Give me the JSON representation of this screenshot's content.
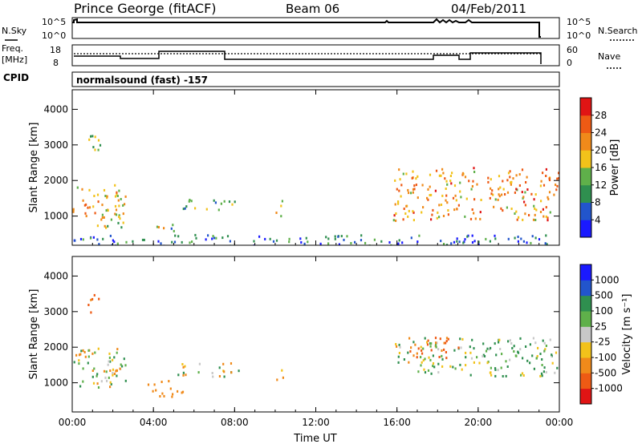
{
  "header": {
    "station": "Prince George (fitACF)",
    "beam": "Beam 06",
    "date": "04/Feb/2011"
  },
  "top_panels": {
    "nsky_label": "N.Sky",
    "nsearch_label": "N.Search",
    "noise_tick_top": "10^5",
    "noise_tick_bottom": "10^0",
    "freq_label_1": "Freq.",
    "freq_label_2": "[MHz]",
    "freq_tick_top": "18",
    "freq_tick_bottom": "8",
    "nave_label": "Nave",
    "nave_tick_top": "60",
    "nave_tick_bottom": "0",
    "cpid_label": "CPID",
    "cpid_text": "normalsound (fast) -157"
  },
  "colors": {
    "power_scale": [
      "#1a1aff",
      "#2255cc",
      "#2f8f4f",
      "#5fb04a",
      "#f2c21a",
      "#f08a1a",
      "#ee5a14",
      "#e01414"
    ],
    "velocity_scale": [
      "#e01414",
      "#ee5a14",
      "#f08a1a",
      "#f2c21a",
      "#c8c8c8",
      "#5fb04a",
      "#2f8f4f",
      "#2255cc",
      "#1a1aff"
    ]
  },
  "chart_data": [
    {
      "type": "heatmap",
      "name": "power",
      "xlabel": "",
      "ylabel": "Slant Range [km]",
      "xlim": [
        0,
        24
      ],
      "ylim": [
        180,
        4550
      ],
      "x_ticks": [
        "00:00",
        "04:00",
        "08:00",
        "12:00",
        "16:00",
        "20:00",
        "00:00"
      ],
      "y_ticks": [
        1000,
        2000,
        3000,
        4000
      ],
      "colorbar": {
        "label": "Power [dB]",
        "ticks": [
          4,
          8,
          12,
          16,
          20,
          24,
          28
        ],
        "range": [
          0,
          32
        ]
      },
      "blobs": [
        {
          "t_start": 0.0,
          "t_end": 2.6,
          "r_min": 900,
          "r_max": 1900,
          "value": 20
        },
        {
          "t_start": 0.7,
          "t_end": 1.5,
          "r_min": 2800,
          "r_max": 3500,
          "value": 12
        },
        {
          "t_start": 1.0,
          "t_end": 2.8,
          "r_min": 700,
          "r_max": 1200,
          "value": 16
        },
        {
          "t_start": 3.7,
          "t_end": 5.0,
          "r_min": 600,
          "r_max": 900,
          "value": 14
        },
        {
          "t_start": 4.8,
          "t_end": 8.0,
          "r_min": 1200,
          "r_max": 1500,
          "value": 12
        },
        {
          "t_start": 10.0,
          "t_end": 10.5,
          "r_min": 1000,
          "r_max": 1500,
          "value": 18
        },
        {
          "t_start": 15.8,
          "t_end": 24.0,
          "r_min": 900,
          "r_max": 2400,
          "value": 22
        },
        {
          "t_start": 0.0,
          "t_end": 24.0,
          "r_min": 180,
          "r_max": 500,
          "value": 8
        }
      ]
    },
    {
      "type": "heatmap",
      "name": "velocity",
      "xlabel": "Time UT",
      "ylabel": "Slant Range [km]",
      "xlim": [
        0,
        24
      ],
      "ylim": [
        180,
        4550
      ],
      "x_ticks": [
        "00:00",
        "04:00",
        "08:00",
        "12:00",
        "16:00",
        "20:00",
        "00:00"
      ],
      "y_ticks": [
        1000,
        2000,
        3000,
        4000
      ],
      "colorbar": {
        "label": "Velocity [m s⁻¹]",
        "ticks": [
          "-1000",
          "-500",
          "-100",
          "-25",
          "25",
          "100",
          "500",
          "1000"
        ]
      },
      "blobs": [
        {
          "t_start": 0.0,
          "t_end": 2.6,
          "r_min": 900,
          "r_max": 2000,
          "value": 0
        },
        {
          "t_start": 0.7,
          "t_end": 1.4,
          "r_min": 3000,
          "r_max": 3500,
          "value": -500
        },
        {
          "t_start": 1.2,
          "t_end": 2.6,
          "r_min": 1000,
          "r_max": 1600,
          "value": -100
        },
        {
          "t_start": 3.7,
          "t_end": 5.5,
          "r_min": 600,
          "r_max": 1100,
          "value": -300
        },
        {
          "t_start": 5.0,
          "t_end": 8.2,
          "r_min": 1200,
          "r_max": 1600,
          "value": 0
        },
        {
          "t_start": 10.0,
          "t_end": 10.4,
          "r_min": 1000,
          "r_max": 1400,
          "value": -100
        },
        {
          "t_start": 15.8,
          "t_end": 18.0,
          "r_min": 1600,
          "r_max": 2200,
          "value": 0
        },
        {
          "t_start": 17.0,
          "t_end": 24.0,
          "r_min": 1200,
          "r_max": 2300,
          "value": 100
        },
        {
          "t_start": 16.5,
          "t_end": 19.0,
          "r_min": 1700,
          "r_max": 2300,
          "value": -600
        }
      ]
    }
  ]
}
